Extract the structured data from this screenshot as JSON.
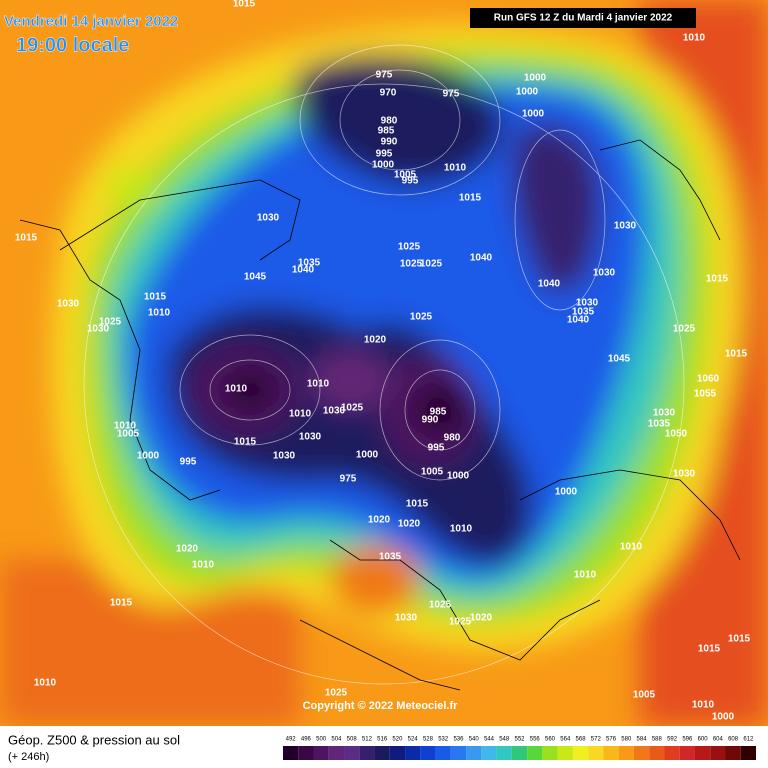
{
  "header": {
    "date": "Vendredi 14 janvier 2022",
    "time": "19:00 locale",
    "run": "Run GFS 12 Z du Mardi 4 janvier 2022"
  },
  "copyright": "Copyright © 2022 Meteociel.fr",
  "footer": {
    "title": "Géop. Z500 & pression au sol",
    "lead": "(+ 246h)"
  },
  "scale": {
    "values": [
      492,
      496,
      500,
      504,
      508,
      512,
      516,
      520,
      524,
      528,
      532,
      536,
      540,
      544,
      548,
      552,
      556,
      560,
      564,
      568,
      572,
      576,
      580,
      584,
      588,
      592,
      596,
      600,
      604,
      608,
      612
    ],
    "colors": [
      "#20002a",
      "#3a0845",
      "#4e1460",
      "#632577",
      "#5a2c86",
      "#36206e",
      "#1c1a5e",
      "#101a80",
      "#0a2aa8",
      "#1040d0",
      "#1a5ae8",
      "#2a78f0",
      "#3a98f0",
      "#40b8e8",
      "#30c8c0",
      "#30c878",
      "#58d838",
      "#98e020",
      "#c8e818",
      "#f0f020",
      "#f8d820",
      "#f8b818",
      "#f89a18",
      "#f07818",
      "#e85a18",
      "#e03c20",
      "#d02828",
      "#b81818",
      "#981010",
      "#700808",
      "#300000"
    ]
  },
  "isobar_labels": [
    975,
    970,
    975,
    1000,
    1000,
    1010,
    1015,
    1000,
    980,
    985,
    990,
    995,
    1000,
    1005,
    1010,
    995,
    1015,
    1030,
    1015,
    1030,
    1025,
    1040,
    1025,
    1025,
    1035,
    1040,
    1045,
    1030,
    1015,
    1040,
    1030,
    1035,
    1040,
    1015,
    1030,
    1010,
    1025,
    1030,
    1025,
    1025,
    1015,
    1020,
    1045,
    1010,
    1010,
    1060,
    1055,
    1010,
    1030,
    1025,
    985,
    990,
    1030,
    1035,
    980,
    1050,
    1010,
    1005,
    1015,
    1030,
    995,
    1000,
    995,
    1030,
    1000,
    1005,
    1000,
    1030,
    975,
    1000,
    1015,
    1020,
    1020,
    1010,
    1010,
    1020,
    1035,
    1010,
    1010,
    1015,
    1025,
    1030,
    1020,
    1025,
    1015,
    1015,
    1010,
    1025,
    1005,
    1010,
    1000
  ]
}
